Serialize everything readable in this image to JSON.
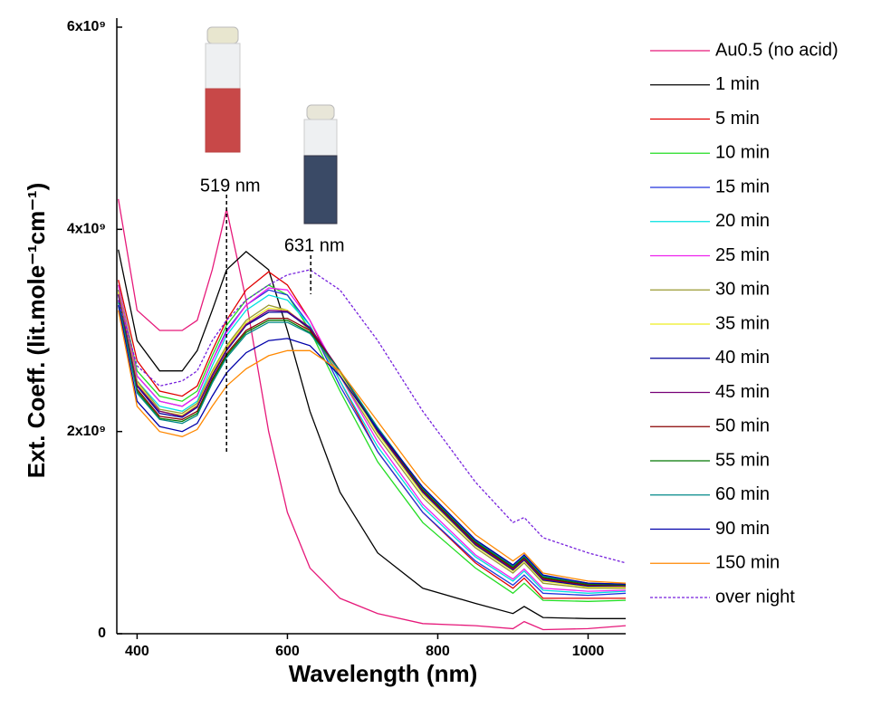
{
  "chart_data": {
    "type": "line",
    "x_label": "Wavelength (nm)",
    "y_label": "Ext. Coeff. (lit.mole⁻¹cm⁻¹)",
    "xlim": [
      373,
      1050
    ],
    "xticks": [
      400,
      600,
      800,
      1000
    ],
    "ylim": [
      0,
      6000000000.0
    ],
    "yticks": [
      0,
      {
        "value": 2000000000.0,
        "label": "2x10⁹"
      },
      {
        "value": 4000000000.0,
        "label": "4x10⁹"
      },
      {
        "value": 6000000000.0,
        "label": "6x10⁹"
      }
    ],
    "legend": "right",
    "x": [
      375,
      400,
      430,
      460,
      480,
      500,
      519,
      545,
      575,
      600,
      630,
      670,
      720,
      780,
      850,
      900,
      915,
      940,
      1000,
      1050
    ],
    "series": [
      {
        "name": "Au0.5 (no acid)",
        "color": "#e6197a",
        "values": [
          4300000000.0,
          3200000000.0,
          3000000000.0,
          3000000000.0,
          3100000000.0,
          3600000000.0,
          4200000000.0,
          3300000000.0,
          2000000000.0,
          1200000000.0,
          650000000.0,
          350000000.0,
          200000000.0,
          100000000.0,
          80000000.0,
          50000000.0,
          120000000.0,
          40000000.0,
          50000000.0,
          80000000.0
        ]
      },
      {
        "name": "1 min",
        "color": "#000000",
        "values": [
          3800000000.0,
          2900000000.0,
          2600000000.0,
          2600000000.0,
          2800000000.0,
          3200000000.0,
          3600000000.0,
          3780000000.0,
          3600000000.0,
          3000000000.0,
          2200000000.0,
          1400000000.0,
          800000000.0,
          450000000.0,
          300000000.0,
          200000000.0,
          270000000.0,
          160000000.0,
          150000000.0,
          150000000.0
        ]
      },
      {
        "name": "5 min",
        "color": "#e00000",
        "values": [
          3500000000.0,
          2700000000.0,
          2400000000.0,
          2350000000.0,
          2450000000.0,
          2800000000.0,
          3100000000.0,
          3400000000.0,
          3580000000.0,
          3450000000.0,
          3100000000.0,
          2500000000.0,
          1800000000.0,
          1200000000.0,
          700000000.0,
          450000000.0,
          550000000.0,
          350000000.0,
          350000000.0,
          350000000.0
        ]
      },
      {
        "name": "10 min",
        "color": "#22dd22",
        "values": [
          3450000000.0,
          2600000000.0,
          2350000000.0,
          2300000000.0,
          2400000000.0,
          2750000000.0,
          3050000000.0,
          3300000000.0,
          3450000000.0,
          3350000000.0,
          3000000000.0,
          2400000000.0,
          1700000000.0,
          1100000000.0,
          650000000.0,
          400000000.0,
          500000000.0,
          330000000.0,
          320000000.0,
          330000000.0
        ]
      },
      {
        "name": "15 min",
        "color": "#2233dd",
        "values": [
          3400000000.0,
          2550000000.0,
          2300000000.0,
          2250000000.0,
          2350000000.0,
          2700000000.0,
          3000000000.0,
          3250000000.0,
          3400000000.0,
          3350000000.0,
          3050000000.0,
          2450000000.0,
          1800000000.0,
          1200000000.0,
          720000000.0,
          480000000.0,
          580000000.0,
          400000000.0,
          380000000.0,
          400000000.0
        ]
      },
      {
        "name": "20 min",
        "color": "#00e0e0",
        "values": [
          3400000000.0,
          2500000000.0,
          2250000000.0,
          2200000000.0,
          2300000000.0,
          2650000000.0,
          2950000000.0,
          3200000000.0,
          3350000000.0,
          3300000000.0,
          3050000000.0,
          2500000000.0,
          1850000000.0,
          1250000000.0,
          760000000.0,
          520000000.0,
          620000000.0,
          430000000.0,
          400000000.0,
          420000000.0
        ]
      },
      {
        "name": "25 min",
        "color": "#ee22ee",
        "values": [
          3450000000.0,
          2550000000.0,
          2300000000.0,
          2250000000.0,
          2350000000.0,
          2700000000.0,
          2980000000.0,
          3250000000.0,
          3420000000.0,
          3400000000.0,
          3100000000.0,
          2550000000.0,
          1900000000.0,
          1280000000.0,
          780000000.0,
          540000000.0,
          640000000.0,
          450000000.0,
          420000000.0,
          430000000.0
        ]
      },
      {
        "name": "30 min",
        "color": "#999933",
        "values": [
          3400000000.0,
          2500000000.0,
          2220000000.0,
          2180000000.0,
          2280000000.0,
          2600000000.0,
          2850000000.0,
          3100000000.0,
          3250000000.0,
          3200000000.0,
          3000000000.0,
          2550000000.0,
          1950000000.0,
          1350000000.0,
          850000000.0,
          600000000.0,
          700000000.0,
          500000000.0,
          450000000.0,
          450000000.0
        ]
      },
      {
        "name": "35 min",
        "color": "#eeee22",
        "values": [
          3380000000.0,
          2480000000.0,
          2200000000.0,
          2160000000.0,
          2260000000.0,
          2580000000.0,
          2830000000.0,
          3080000000.0,
          3220000000.0,
          3200000000.0,
          3020000000.0,
          2580000000.0,
          1980000000.0,
          1380000000.0,
          870000000.0,
          620000000.0,
          720000000.0,
          520000000.0,
          460000000.0,
          460000000.0
        ]
      },
      {
        "name": "40 min",
        "color": "#000099",
        "values": [
          3350000000.0,
          2450000000.0,
          2180000000.0,
          2140000000.0,
          2240000000.0,
          2550000000.0,
          2800000000.0,
          3050000000.0,
          3180000000.0,
          3180000000.0,
          3020000000.0,
          2600000000.0,
          2000000000.0,
          1400000000.0,
          880000000.0,
          630000000.0,
          730000000.0,
          530000000.0,
          470000000.0,
          470000000.0
        ]
      },
      {
        "name": "45 min",
        "color": "#770077",
        "values": [
          3360000000.0,
          2460000000.0,
          2200000000.0,
          2150000000.0,
          2250000000.0,
          2560000000.0,
          2810000000.0,
          3060000000.0,
          3200000000.0,
          3190000000.0,
          3030000000.0,
          2600000000.0,
          2010000000.0,
          1410000000.0,
          890000000.0,
          640000000.0,
          740000000.0,
          540000000.0,
          480000000.0,
          470000000.0
        ]
      },
      {
        "name": "50 min",
        "color": "#880000",
        "values": [
          3300000000.0,
          2420000000.0,
          2150000000.0,
          2120000000.0,
          2200000000.0,
          2520000000.0,
          2770000000.0,
          3000000000.0,
          3120000000.0,
          3120000000.0,
          3000000000.0,
          2600000000.0,
          2020000000.0,
          1420000000.0,
          900000000.0,
          650000000.0,
          750000000.0,
          550000000.0,
          480000000.0,
          480000000.0
        ]
      },
      {
        "name": "55 min",
        "color": "#007700",
        "values": [
          3300000000.0,
          2400000000.0,
          2130000000.0,
          2100000000.0,
          2180000000.0,
          2500000000.0,
          2750000000.0,
          2980000000.0,
          3100000000.0,
          3100000000.0,
          2980000000.0,
          2600000000.0,
          2030000000.0,
          1430000000.0,
          910000000.0,
          660000000.0,
          760000000.0,
          560000000.0,
          490000000.0,
          480000000.0
        ]
      },
      {
        "name": "60 min",
        "color": "#008888",
        "values": [
          3280000000.0,
          2380000000.0,
          2120000000.0,
          2080000000.0,
          2160000000.0,
          2480000000.0,
          2730000000.0,
          2960000000.0,
          3080000000.0,
          3080000000.0,
          2970000000.0,
          2600000000.0,
          2040000000.0,
          1440000000.0,
          920000000.0,
          670000000.0,
          770000000.0,
          570000000.0,
          500000000.0,
          490000000.0
        ]
      },
      {
        "name": "90 min",
        "color": "#0000aa",
        "values": [
          3250000000.0,
          2300000000.0,
          2050000000.0,
          2000000000.0,
          2080000000.0,
          2350000000.0,
          2580000000.0,
          2780000000.0,
          2900000000.0,
          2920000000.0,
          2850000000.0,
          2550000000.0,
          2020000000.0,
          1450000000.0,
          930000000.0,
          680000000.0,
          780000000.0,
          580000000.0,
          500000000.0,
          490000000.0
        ]
      },
      {
        "name": "150 min",
        "color": "#ff8800",
        "values": [
          3200000000.0,
          2250000000.0,
          2000000000.0,
          1950000000.0,
          2020000000.0,
          2250000000.0,
          2450000000.0,
          2620000000.0,
          2750000000.0,
          2800000000.0,
          2800000000.0,
          2600000000.0,
          2100000000.0,
          1500000000.0,
          980000000.0,
          720000000.0,
          800000000.0,
          600000000.0,
          520000000.0,
          500000000.0
        ]
      },
      {
        "name": "over night",
        "color": "#7722dd",
        "line_style": "dashed",
        "values": [
          3300000000.0,
          2650000000.0,
          2450000000.0,
          2500000000.0,
          2600000000.0,
          2900000000.0,
          3100000000.0,
          3300000000.0,
          3450000000.0,
          3550000000.0,
          3600000000.0,
          3400000000.0,
          2900000000.0,
          2200000000.0,
          1500000000.0,
          1100000000.0,
          1150000000.0,
          950000000.0,
          800000000.0,
          700000000.0
        ]
      }
    ],
    "annotations": [
      {
        "text": "519 nm",
        "x": 519
      },
      {
        "text": "631 nm",
        "x": 631
      }
    ]
  }
}
